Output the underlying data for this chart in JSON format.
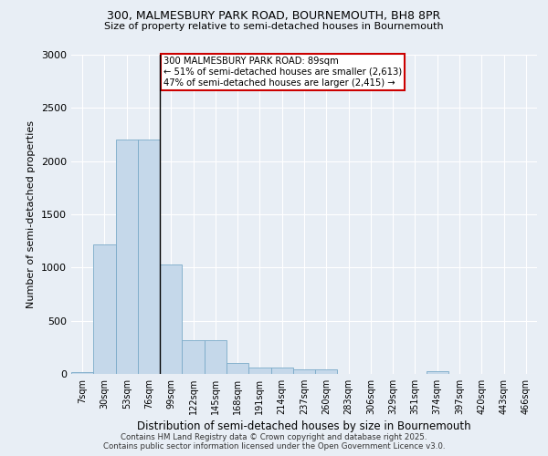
{
  "title": "300, MALMESBURY PARK ROAD, BOURNEMOUTH, BH8 8PR",
  "subtitle": "Size of property relative to semi-detached houses in Bournemouth",
  "xlabel": "Distribution of semi-detached houses by size in Bournemouth",
  "ylabel": "Number of semi-detached properties",
  "categories": [
    "7sqm",
    "30sqm",
    "53sqm",
    "76sqm",
    "99sqm",
    "122sqm",
    "145sqm",
    "168sqm",
    "191sqm",
    "214sqm",
    "237sqm",
    "260sqm",
    "283sqm",
    "306sqm",
    "329sqm",
    "351sqm",
    "374sqm",
    "397sqm",
    "420sqm",
    "443sqm",
    "466sqm"
  ],
  "values": [
    20,
    1220,
    2200,
    2200,
    1030,
    320,
    320,
    100,
    60,
    60,
    40,
    40,
    0,
    0,
    0,
    0,
    30,
    0,
    0,
    0,
    0
  ],
  "bar_color": "#c5d8ea",
  "bar_edge_color": "#7aaac8",
  "property_bin_index": 3.5,
  "annotation_title": "300 MALMESBURY PARK ROAD: 89sqm",
  "annotation_line1": "← 51% of semi-detached houses are smaller (2,613)",
  "annotation_line2": "47% of semi-detached houses are larger (2,415) →",
  "annotation_box_color": "#ffffff",
  "annotation_box_edge": "#cc0000",
  "ylim": [
    0,
    3000
  ],
  "yticks": [
    0,
    500,
    1000,
    1500,
    2000,
    2500,
    3000
  ],
  "background_color": "#e8eef5",
  "grid_color": "#ffffff",
  "title_fontsize": 9,
  "subtitle_fontsize": 8,
  "footer_line1": "Contains HM Land Registry data © Crown copyright and database right 2025.",
  "footer_line2": "Contains public sector information licensed under the Open Government Licence v3.0."
}
